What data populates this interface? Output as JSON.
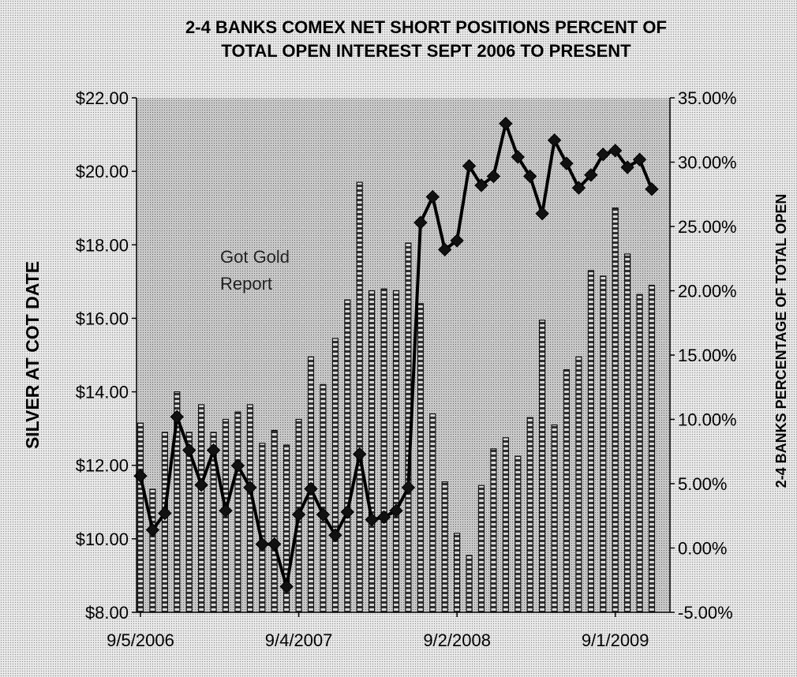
{
  "chart_data": {
    "type": "bar+line",
    "title_lines": [
      "2-4 BANKS COMEX NET SHORT POSITIONS PERCENT OF",
      "TOTAL OPEN INTEREST SEPT 2006 TO PRESENT"
    ],
    "ylabel_left": "SILVER AT COT DATE",
    "ylabel_right": "2-4 BANKS PERCENTAGE OF TOTAL OPEN",
    "annotation_lines": [
      "Got Gold",
      "Report"
    ],
    "x_tick_labels": [
      "9/5/2006",
      "9/4/2007",
      "9/2/2008",
      "9/1/2009"
    ],
    "y_left": {
      "min": 8,
      "max": 22,
      "step": 2,
      "tick_labels": [
        "$8.00",
        "$10.00",
        "$12.00",
        "$14.00",
        "$16.00",
        "$18.00",
        "$20.00",
        "$22.00"
      ]
    },
    "y_right": {
      "min": -5,
      "max": 35,
      "step": 5,
      "tick_labels": [
        "-5.00%",
        "0.00%",
        "5.00%",
        "10.00%",
        "15.00%",
        "20.00%",
        "25.00%",
        "30.00%",
        "35.00%"
      ]
    },
    "grid": false,
    "series": [
      {
        "kind": "bar",
        "axis": "left",
        "values": [
          13.15,
          11.35,
          12.9,
          14.0,
          12.9,
          13.65,
          12.9,
          13.25,
          13.45,
          13.65,
          12.6,
          12.95,
          12.55,
          13.25,
          14.95,
          14.2,
          15.45,
          16.5,
          19.7,
          16.75,
          16.8,
          16.75,
          18.05,
          16.4,
          13.4,
          11.55,
          10.15,
          9.55,
          11.45,
          12.45,
          12.75,
          12.25,
          13.3,
          15.95,
          13.1,
          14.6,
          14.95,
          17.3,
          17.15,
          19.0,
          17.75,
          16.65,
          16.9
        ]
      },
      {
        "kind": "line",
        "axis": "right",
        "marker": "diamond",
        "values": [
          5.6,
          1.4,
          2.7,
          10.2,
          7.6,
          4.9,
          7.6,
          2.9,
          6.4,
          4.7,
          0.3,
          0.3,
          -3.0,
          2.6,
          4.6,
          2.6,
          1.0,
          2.8,
          7.3,
          2.2,
          2.4,
          2.9,
          4.7,
          25.3,
          27.3,
          23.2,
          23.9,
          29.7,
          28.2,
          28.9,
          33.0,
          30.4,
          28.9,
          26.0,
          31.7,
          29.9,
          28.0,
          29.0,
          30.6,
          30.9,
          29.6,
          30.2,
          27.9
        ]
      }
    ]
  }
}
